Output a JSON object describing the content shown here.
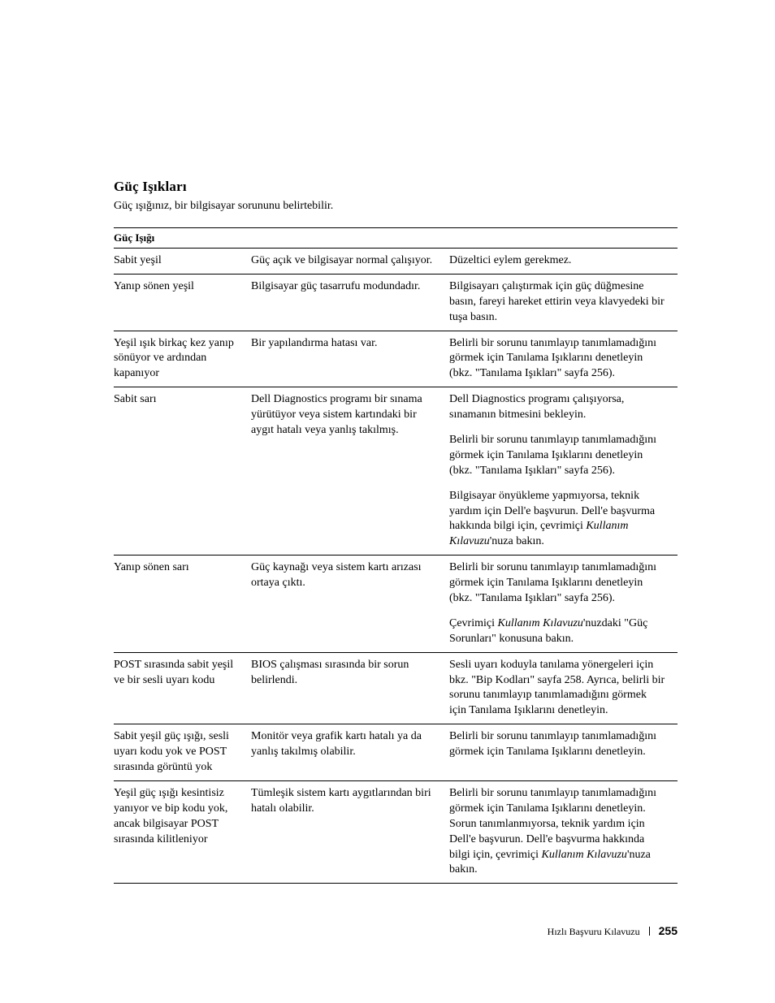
{
  "section_title": "Güç Işıkları",
  "intro_text": "Güç ışığınız, bir bilgisayar sorununu belirtebilir.",
  "table": {
    "headers": {
      "col1": "Güç Işığı",
      "col2": "",
      "col3": ""
    },
    "rows": [
      {
        "light": "Sabit yeşil",
        "meaning": "Güç açık ve bilgisayar normal çalışıyor.",
        "actions": [
          {
            "text": "Düzeltici eylem gerekmez."
          }
        ]
      },
      {
        "light": "Yanıp sönen yeşil",
        "meaning": "Bilgisayar güç tasarrufu modundadır.",
        "actions": [
          {
            "text": "Bilgisayarı çalıştırmak için güç düğmesine basın, fareyi hareket ettirin veya klavyedeki bir tuşa basın."
          }
        ]
      },
      {
        "light": "Yeşil ışık birkaç kez yanıp sönüyor ve ardından kapanıyor",
        "meaning": "Bir yapılandırma hatası var.",
        "actions": [
          {
            "text": "Belirli bir sorunu tanımlayıp tanımlamadığını görmek için Tanılama Işıklarını denetleyin (bkz. \"Tanılama Işıkları\" sayfa 256)."
          }
        ]
      },
      {
        "light": "Sabit sarı",
        "meaning": "Dell Diagnostics programı bir sınama yürütüyor veya sistem kartındaki bir aygıt hatalı veya yanlış takılmış.",
        "actions": [
          {
            "text": "Dell Diagnostics programı çalışıyorsa, sınamanın bitmesini bekleyin."
          },
          {
            "text": "Belirli bir sorunu tanımlayıp tanımlamadığını görmek için Tanılama Işıklarını denetleyin (bkz. \"Tanılama Işıkları\" sayfa 256)."
          },
          {
            "html": "Bilgisayar önyükleme yapmıyorsa, teknik yardım için Dell'e başvurun. Dell'e başvurma hakkında bilgi için, çevrimiçi <span class=\"italic\">Kullanım Kılavuzu</span>'nuza bakın."
          }
        ]
      },
      {
        "light": "Yanıp sönen sarı",
        "meaning": "Güç kaynağı veya sistem kartı arızası ortaya çıktı.",
        "actions": [
          {
            "text": "Belirli bir sorunu tanımlayıp tanımlamadığını görmek için Tanılama Işıklarını denetleyin (bkz. \"Tanılama Işıkları\" sayfa 256)."
          },
          {
            "html": "Çevrimiçi <span class=\"italic\">Kullanım Kılavuzu</span>'nuzdaki \"Güç Sorunları\" konusuna bakın."
          }
        ]
      },
      {
        "light": "POST sırasında sabit yeşil ve bir sesli uyarı kodu",
        "meaning": "BIOS çalışması sırasında bir sorun belirlendi.",
        "actions": [
          {
            "text": "Sesli uyarı koduyla tanılama yönergeleri için bkz. \"Bip Kodları\" sayfa 258. Ayrıca, belirli bir sorunu tanımlayıp tanımlamadığını görmek için Tanılama Işıklarını denetleyin."
          }
        ]
      },
      {
        "light": "Sabit yeşil güç ışığı, sesli uyarı kodu yok ve POST sırasında görüntü yok",
        "meaning": "Monitör veya grafik kartı hatalı ya da yanlış takılmış olabilir.",
        "actions": [
          {
            "text": "Belirli bir sorunu tanımlayıp tanımlamadığını görmek için Tanılama Işıklarını denetleyin."
          }
        ]
      },
      {
        "light": "Yeşil güç ışığı kesintisiz yanıyor ve bip kodu yok, ancak bilgisayar POST sırasında kilitleniyor",
        "meaning": "Tümleşik sistem kartı aygıtlarından biri hatalı olabilir.",
        "actions": [
          {
            "html": "Belirli bir sorunu tanımlayıp tanımlamadığını görmek için Tanılama Işıklarını denetleyin. Sorun tanımlanmıyorsa, teknik yardım için Dell'e başvurun. Dell'e başvurma hakkında bilgi için, çevrimiçi <span class=\"italic\">Kullanım Kılavuzu</span>'nuza bakın."
          }
        ]
      }
    ]
  },
  "footer": {
    "label": "Hızlı Başvuru Kılavuzu",
    "page": "255"
  },
  "colors": {
    "text": "#000000",
    "background": "#ffffff",
    "border": "#000000"
  }
}
